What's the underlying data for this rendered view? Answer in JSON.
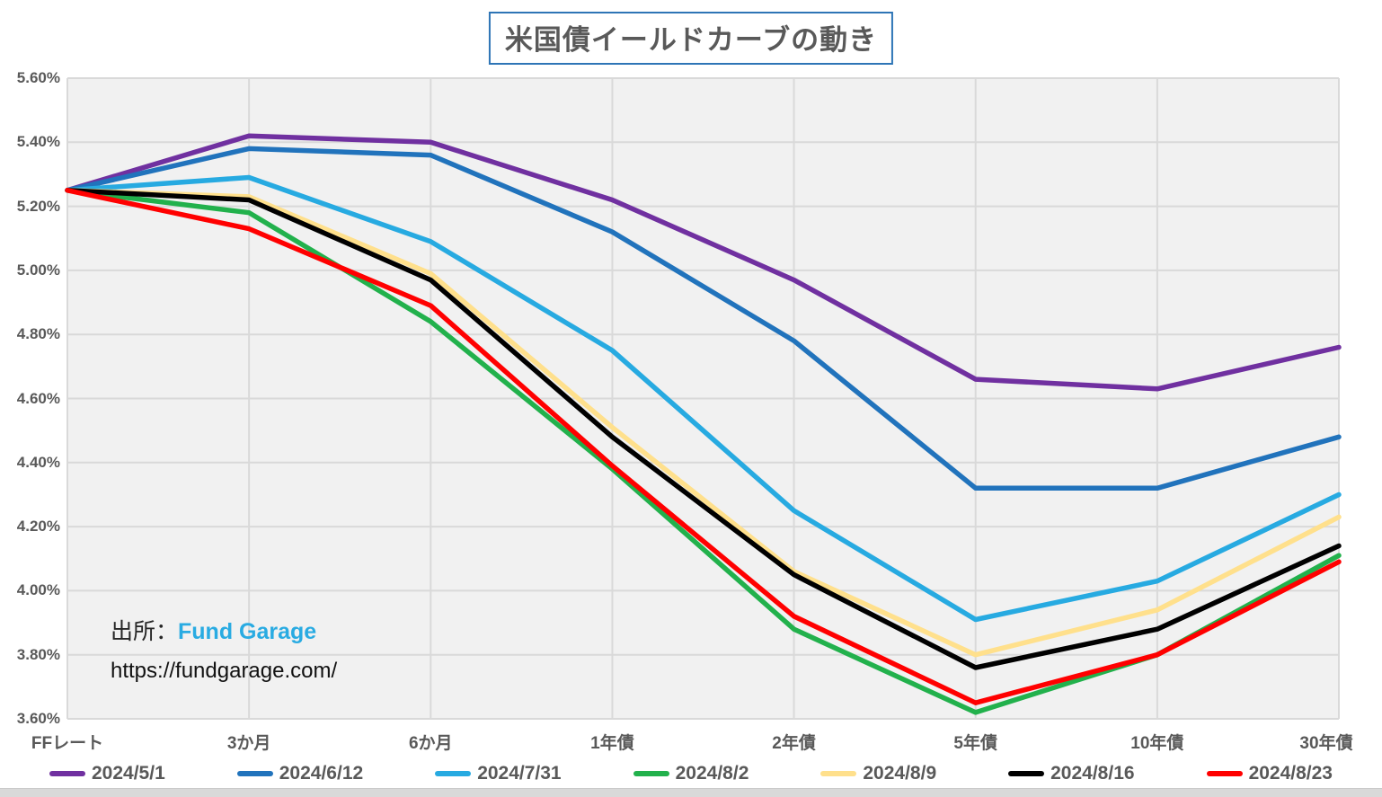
{
  "title": "米国債イールドカーブの動き",
  "source": {
    "prefix": "出所：",
    "name": "Fund Garage",
    "url": "https://fundgarage.com/",
    "name_color": "#29ABE2"
  },
  "colors": {
    "title_border": "#2E75B6",
    "plot_background": "#F1F1F1",
    "gridline": "#D9D9D9",
    "axis_text": "#595959"
  },
  "chart_data": {
    "type": "line",
    "title": "米国債イールドカーブの動き",
    "xlabel": "",
    "ylabel": "",
    "categories": [
      "FFレート",
      "3か月",
      "6か月",
      "1年債",
      "2年債",
      "5年債",
      "10年債",
      "30年債"
    ],
    "y_axis": {
      "min": 3.6,
      "max": 5.6,
      "step": 0.2,
      "unit": "%"
    },
    "ytick_labels": [
      "5.60%",
      "5.40%",
      "5.20%",
      "5.00%",
      "4.80%",
      "4.60%",
      "4.40%",
      "4.20%",
      "4.00%",
      "3.80%",
      "3.60%"
    ],
    "grid": true,
    "legend_position": "bottom",
    "series": [
      {
        "name": "2024/5/1",
        "color": "#7030A0",
        "values": [
          5.25,
          5.42,
          5.4,
          5.22,
          4.97,
          4.66,
          4.63,
          4.76
        ]
      },
      {
        "name": "2024/6/12",
        "color": "#2173BC",
        "values": [
          5.25,
          5.38,
          5.36,
          5.12,
          4.78,
          4.32,
          4.32,
          4.48
        ]
      },
      {
        "name": "2024/7/31",
        "color": "#27AAE1",
        "values": [
          5.25,
          5.29,
          5.09,
          4.75,
          4.25,
          3.91,
          4.03,
          4.3
        ]
      },
      {
        "name": "2024/8/2",
        "color": "#22B14C",
        "values": [
          5.25,
          5.18,
          4.84,
          4.38,
          3.88,
          3.62,
          3.8,
          4.11
        ]
      },
      {
        "name": "2024/8/9",
        "color": "#FFE08C",
        "values": [
          5.25,
          5.23,
          4.99,
          4.51,
          4.06,
          3.8,
          3.94,
          4.23
        ]
      },
      {
        "name": "2024/8/16",
        "color": "#000000",
        "values": [
          5.25,
          5.22,
          4.97,
          4.48,
          4.05,
          3.76,
          3.88,
          4.14
        ]
      },
      {
        "name": "2024/8/23",
        "color": "#FF0000",
        "values": [
          5.25,
          5.13,
          4.89,
          4.39,
          3.92,
          3.65,
          3.8,
          4.09
        ]
      }
    ]
  }
}
